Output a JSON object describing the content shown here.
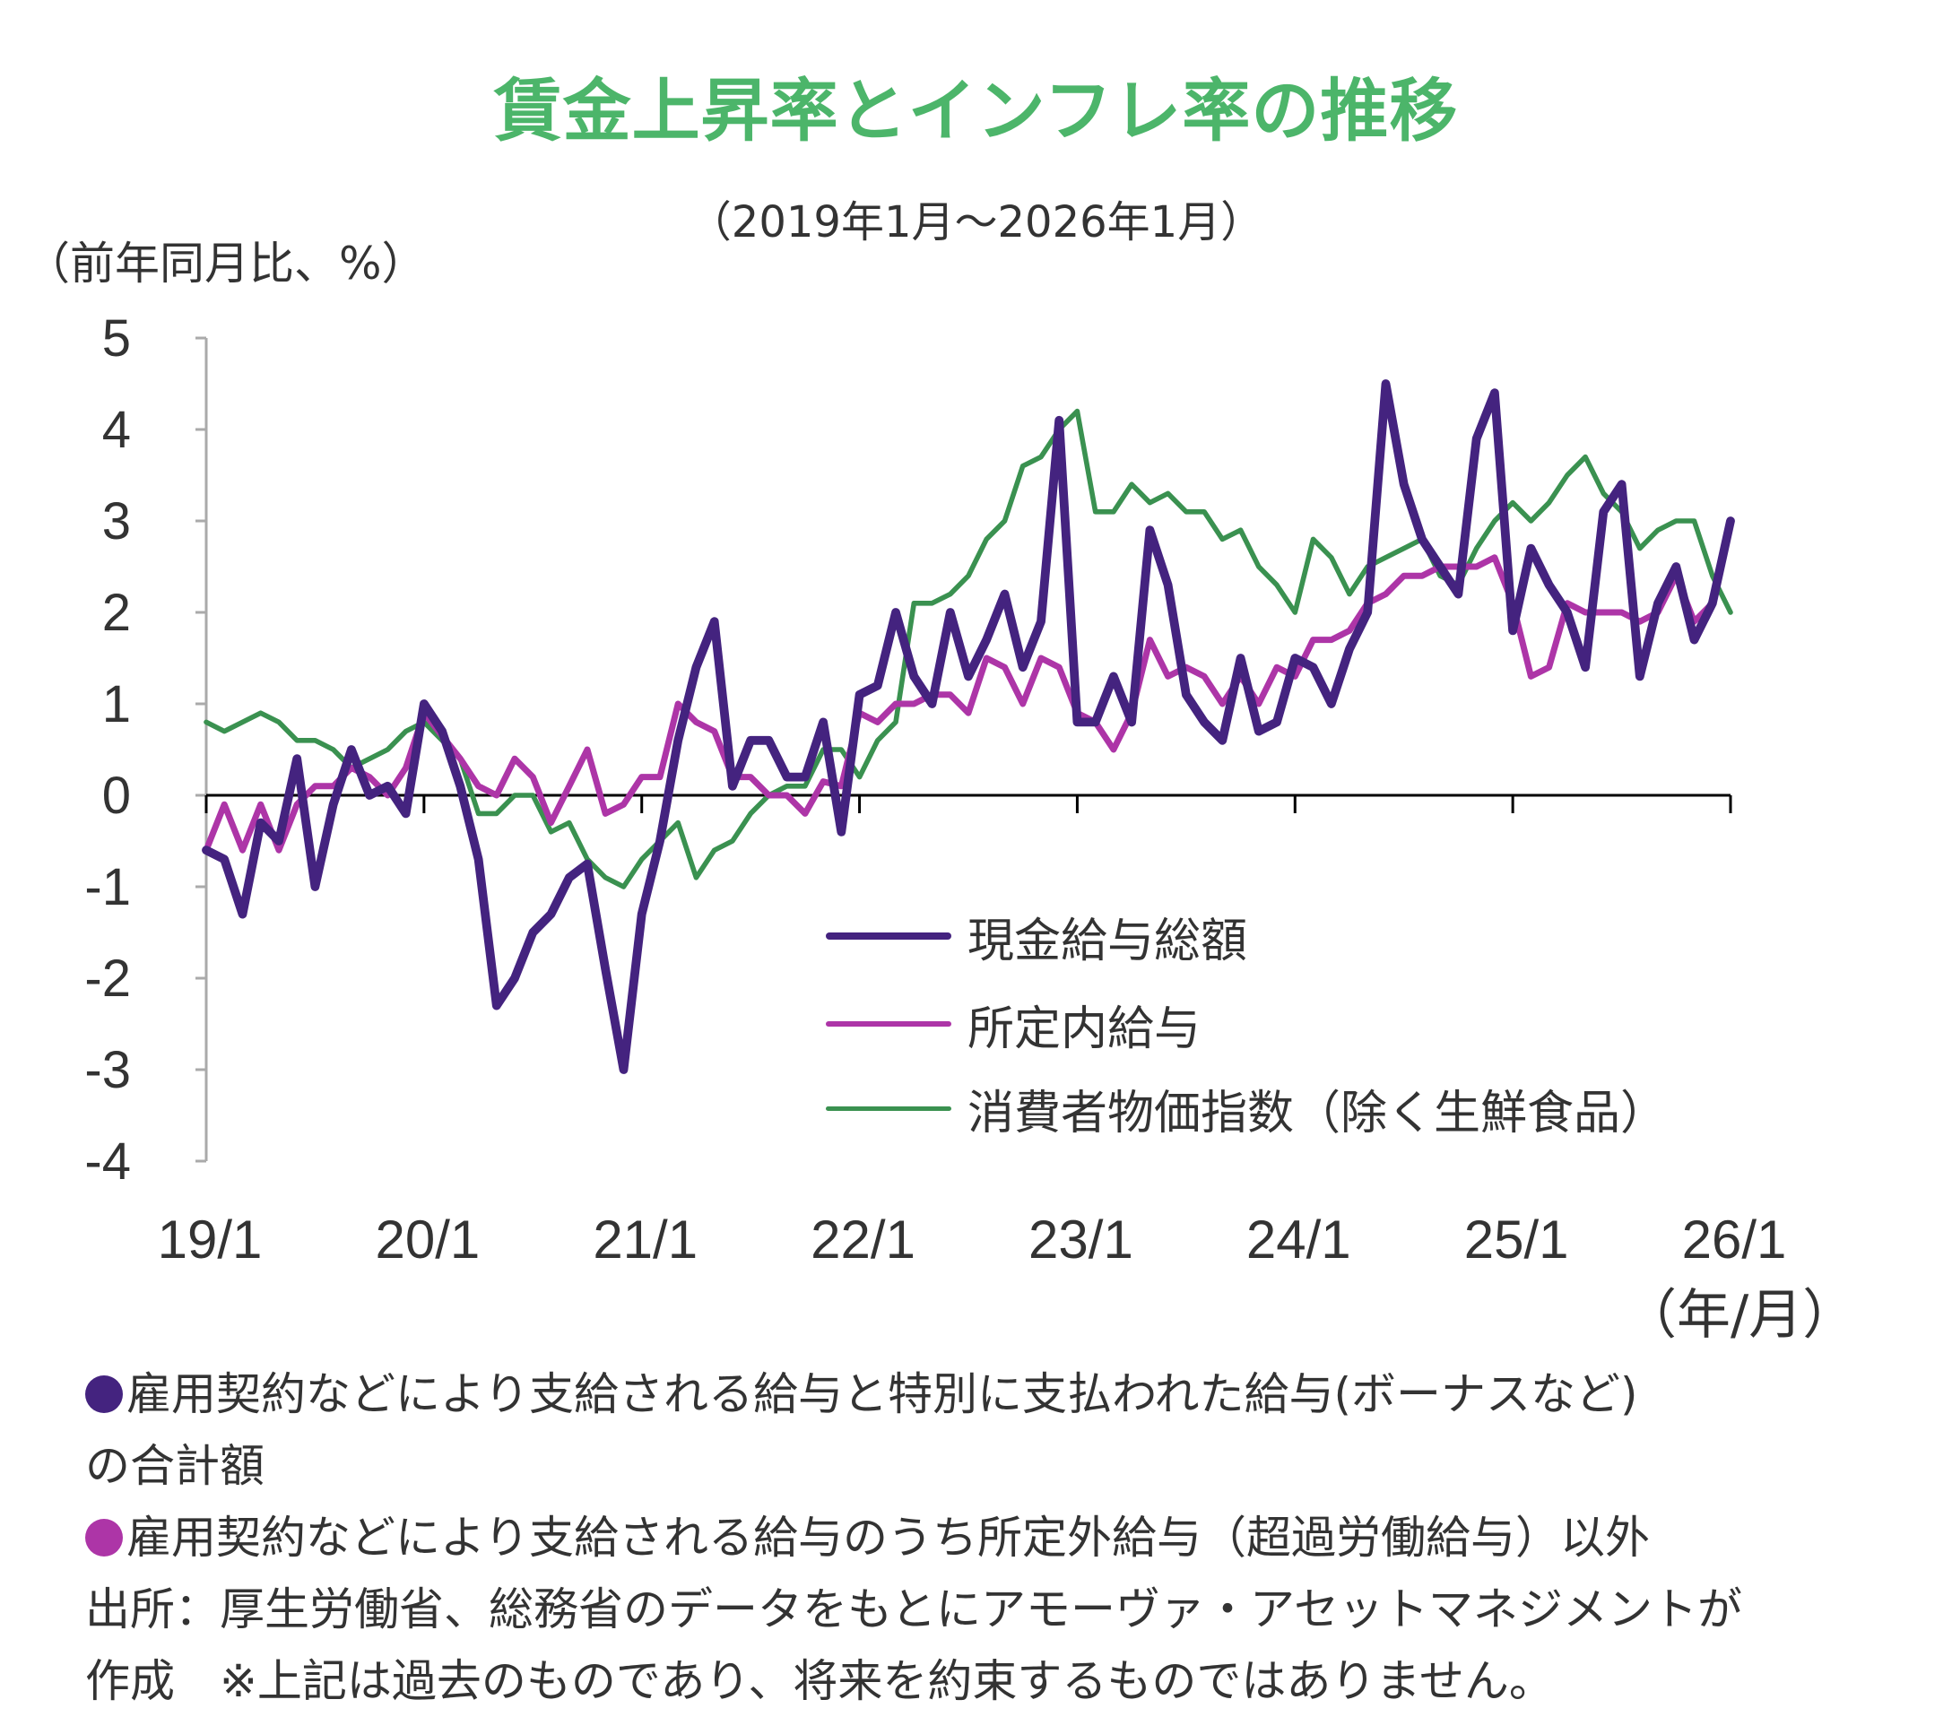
{
  "chart_data": {
    "type": "line",
    "title": "賃金上昇率とインフレ率の推移",
    "subtitle": "（2019年1月～2026年1月）",
    "ylabel": "（前年同月比、%）",
    "xlabel": "（年/月）",
    "ylim": [
      -4,
      5
    ],
    "yticks": [
      "5",
      "4",
      "3",
      "2",
      "1",
      "0",
      "-1",
      "-2",
      "-3",
      "-4"
    ],
    "ytick_values": [
      5,
      4,
      3,
      2,
      1,
      0,
      -1,
      -2,
      -3,
      -4
    ],
    "xtick_labels": [
      "19/1",
      "20/1",
      "21/1",
      "22/1",
      "23/1",
      "24/1",
      "25/1",
      "26/1"
    ],
    "x_start": "2019/1",
    "x_end": "2026/1",
    "grid": false,
    "legend_position": "center-right",
    "series": [
      {
        "name": "現金給与総額",
        "color": "#44237f",
        "width": 7,
        "values": [
          -0.6,
          -0.7,
          -1.3,
          -0.3,
          -0.5,
          0.4,
          -1.0,
          -0.1,
          0.5,
          0.0,
          0.1,
          -0.2,
          1.0,
          0.7,
          0.1,
          -0.7,
          -2.3,
          -2.0,
          -1.5,
          -1.3,
          -0.9,
          -0.75,
          -1.9,
          -3.0,
          -1.3,
          -0.5,
          0.6,
          1.4,
          1.9,
          0.1,
          0.6,
          0.6,
          0.2,
          0.2,
          0.8,
          -0.4,
          1.1,
          1.2,
          2.0,
          1.3,
          1.0,
          2.0,
          1.3,
          1.7,
          2.2,
          1.4,
          1.9,
          4.1,
          0.8,
          0.8,
          1.3,
          0.8,
          2.9,
          2.3,
          1.1,
          0.8,
          0.6,
          1.5,
          0.7,
          0.8,
          1.5,
          1.4,
          1.0,
          1.6,
          2.0,
          4.5,
          3.4,
          2.8,
          2.5,
          2.2,
          3.9,
          4.4,
          1.8,
          2.7,
          2.3,
          2.0,
          1.4,
          3.1,
          3.4,
          1.3,
          2.1,
          2.5,
          1.7,
          2.1,
          3.0
        ]
      },
      {
        "name": "所定内給与",
        "color": "#ad35a7",
        "width": 5,
        "values": [
          -0.6,
          -0.1,
          -0.6,
          -0.1,
          -0.6,
          -0.1,
          0.1,
          0.1,
          0.3,
          0.2,
          0.0,
          0.3,
          0.9,
          0.65,
          0.4,
          0.1,
          0.0,
          0.4,
          0.2,
          -0.3,
          0.1,
          0.5,
          -0.2,
          -0.1,
          0.2,
          0.2,
          1.0,
          0.8,
          0.7,
          0.2,
          0.2,
          0.0,
          0.0,
          -0.2,
          0.15,
          0.1,
          0.9,
          0.8,
          1.0,
          1.0,
          1.1,
          1.1,
          0.9,
          1.5,
          1.4,
          1.0,
          1.5,
          1.4,
          0.9,
          0.8,
          0.5,
          0.9,
          1.7,
          1.3,
          1.4,
          1.3,
          1.0,
          1.3,
          1.0,
          1.4,
          1.3,
          1.7,
          1.7,
          1.8,
          2.1,
          2.2,
          2.4,
          2.4,
          2.5,
          2.5,
          2.5,
          2.6,
          2.1,
          1.3,
          1.4,
          2.1,
          2.0,
          2.0,
          2.0,
          1.9,
          2.0,
          2.4,
          1.9,
          2.1,
          3.0
        ]
      },
      {
        "name": "消費者物価指数（除く生鮮食品）",
        "color": "#3a9150",
        "width": 4,
        "values": [
          0.8,
          0.7,
          0.8,
          0.9,
          0.8,
          0.6,
          0.6,
          0.5,
          0.3,
          0.4,
          0.5,
          0.7,
          0.8,
          0.6,
          0.4,
          -0.2,
          -0.2,
          0.0,
          0.0,
          -0.4,
          -0.3,
          -0.7,
          -0.9,
          -1.0,
          -0.7,
          -0.5,
          -0.3,
          -0.9,
          -0.6,
          -0.5,
          -0.2,
          0.0,
          0.1,
          0.1,
          0.5,
          0.5,
          0.2,
          0.6,
          0.8,
          2.1,
          2.1,
          2.2,
          2.4,
          2.8,
          3.0,
          3.6,
          3.7,
          4.0,
          4.2,
          3.1,
          3.1,
          3.4,
          3.2,
          3.3,
          3.1,
          3.1,
          2.8,
          2.9,
          2.5,
          2.3,
          2.0,
          2.8,
          2.6,
          2.2,
          2.5,
          2.6,
          2.7,
          2.8,
          2.4,
          2.3,
          2.7,
          3.0,
          3.2,
          3.0,
          3.2,
          3.5,
          3.7,
          3.3,
          3.1,
          2.7,
          2.9,
          3.0,
          3.0,
          2.4,
          2.0
        ]
      }
    ]
  },
  "footnotes": {
    "note1_line1": "雇用契約などにより支給される給与と特別に支払われた給与(ボーナスなど)",
    "note1_line2": "の合計額",
    "note2": "雇用契約などにより支給される給与のうち所定外給与（超過労働給与）以外",
    "source_line1": "出所：厚生労働省、総務省のデータをもとにアモーヴァ・アセットマネジメントが",
    "source_line2": "作成　※上記は過去のものであり、将来を約束するものではありません。"
  }
}
